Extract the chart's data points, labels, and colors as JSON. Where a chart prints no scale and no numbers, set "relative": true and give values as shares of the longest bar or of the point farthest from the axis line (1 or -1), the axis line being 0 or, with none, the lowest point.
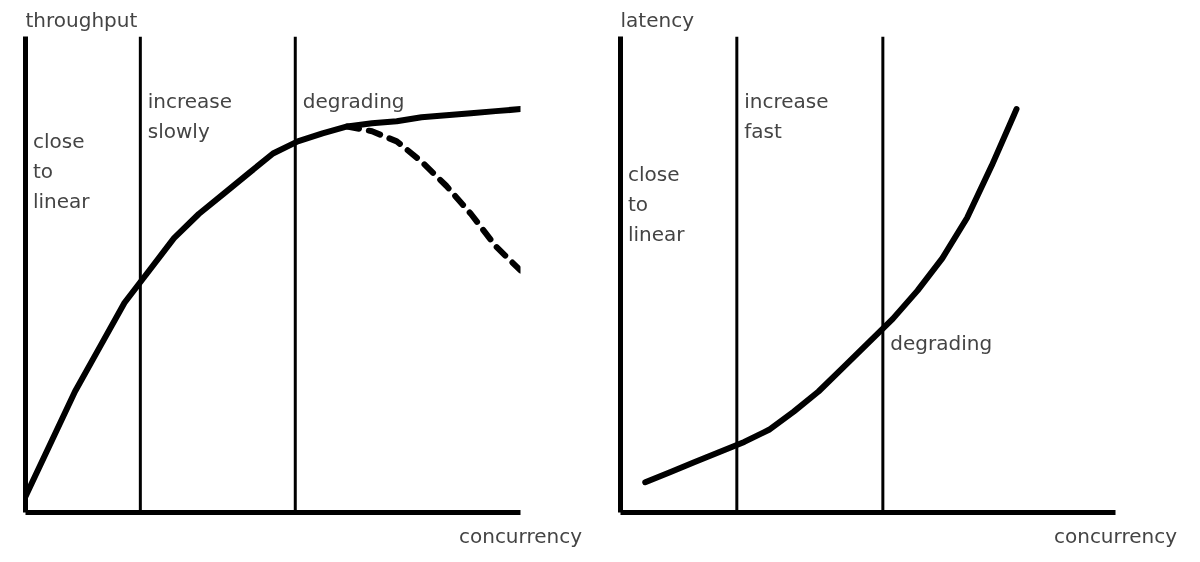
{
  "chart_data": [
    {
      "type": "line",
      "relative": true,
      "xlabel": "concurrency",
      "ylabel": "throughput",
      "categories": [
        null,
        null,
        null,
        null,
        null,
        null,
        null,
        null,
        null,
        null,
        null,
        null,
        null,
        null,
        null,
        null,
        null,
        null,
        null,
        null,
        null
      ],
      "series": [
        {
          "color": "#000000",
          "line_style": "solid",
          "values": [
            0.04,
            0.17,
            0.3,
            0.41,
            0.52,
            0.6,
            0.68,
            0.74,
            0.79,
            0.84,
            0.89,
            0.92,
            0.94,
            0.957,
            0.965,
            0.97,
            0.98,
            0.985,
            0.99,
            0.995,
            1.0
          ]
        },
        {
          "color": "#000000",
          "line_style": "dashed",
          "values": [
            null,
            null,
            null,
            null,
            null,
            null,
            null,
            null,
            null,
            null,
            null,
            null,
            null,
            0.957,
            0.945,
            0.92,
            0.87,
            0.81,
            0.74,
            0.66,
            0.6
          ]
        }
      ],
      "annotations": [
        "close\nto\nlinear",
        "increase\nslowly",
        "degrading"
      ]
    },
    {
      "type": "line",
      "relative": true,
      "xlabel": "concurrency",
      "ylabel": "latency",
      "categories": [
        null,
        null,
        null,
        null,
        null,
        null,
        null,
        null,
        null,
        null,
        null,
        null,
        null,
        null,
        null,
        null,
        null,
        null,
        null,
        null,
        null
      ],
      "series": [
        {
          "color": "#000000",
          "line_style": "solid",
          "values": [
            null,
            0.075,
            0.1,
            0.125,
            0.15,
            0.175,
            0.205,
            0.25,
            0.3,
            0.36,
            0.42,
            0.48,
            0.55,
            0.63,
            0.73,
            0.86,
            1.0,
            null,
            null,
            null,
            null
          ]
        }
      ],
      "annotations": [
        "close\nto\nlinear",
        "increase\nfast",
        "degrading"
      ]
    }
  ]
}
